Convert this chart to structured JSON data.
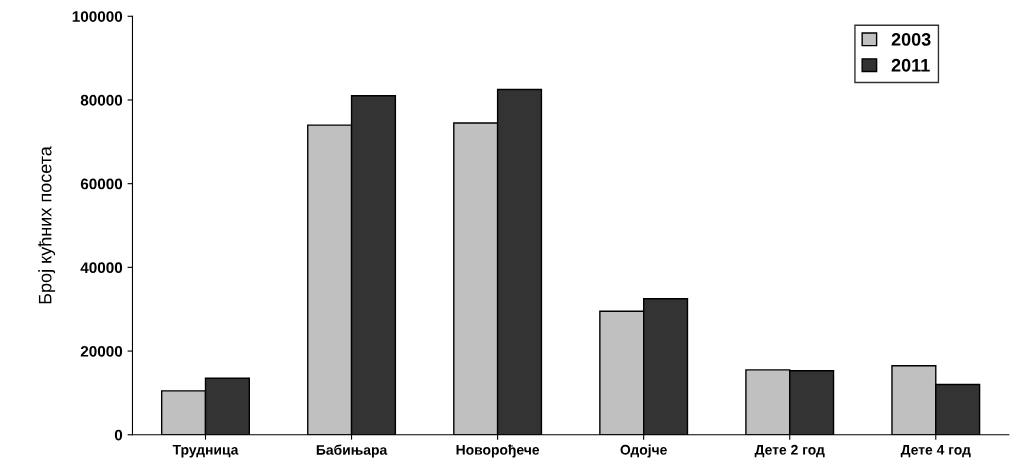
{
  "chart_data": {
    "type": "bar",
    "ylabel": "Број кућних посета",
    "categories": [
      "Трудница",
      "Бабињара",
      "Новорођече",
      "Одојче",
      "Дете 2 год",
      "Дете 4 год"
    ],
    "series": [
      {
        "name": "2003",
        "color": "#c0c0c0",
        "values": [
          10500,
          74000,
          74500,
          29500,
          15500,
          16500
        ]
      },
      {
        "name": "2011",
        "color": "#333333",
        "values": [
          13500,
          81000,
          82500,
          32500,
          15300,
          12000
        ]
      }
    ],
    "ylim": [
      0,
      100000
    ],
    "yticks": [
      0,
      20000,
      40000,
      60000,
      80000,
      100000
    ],
    "grid": false,
    "legend": "top right"
  }
}
